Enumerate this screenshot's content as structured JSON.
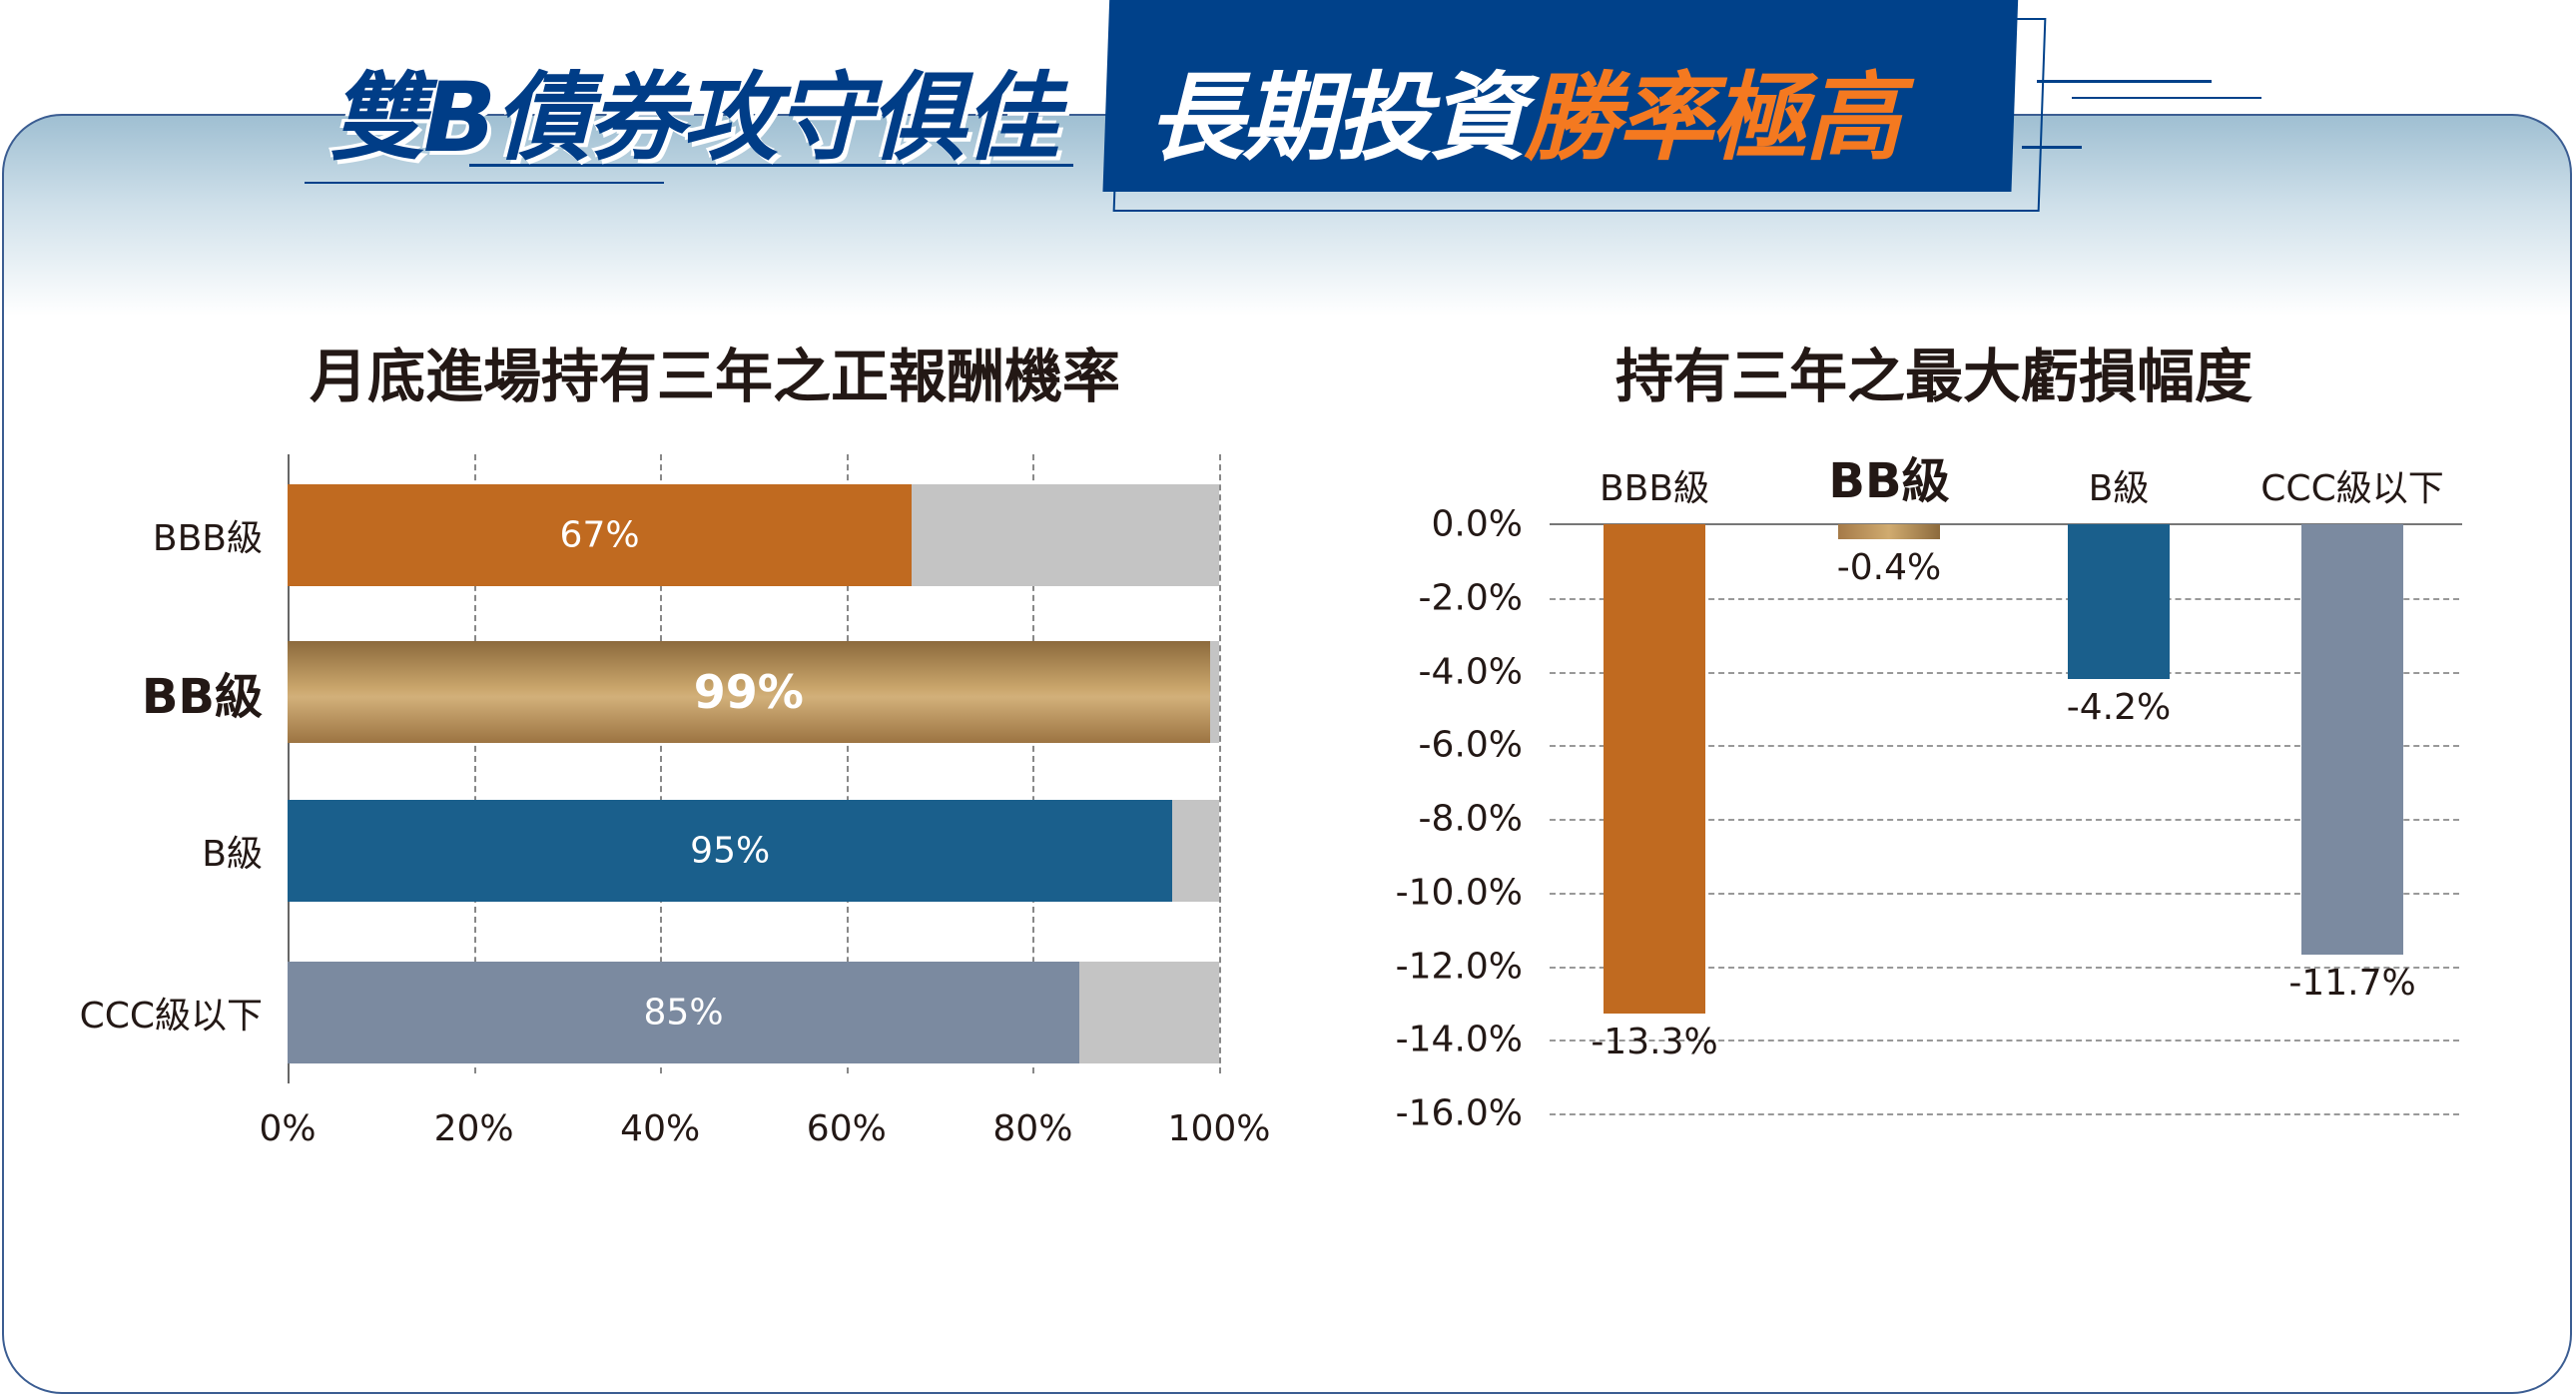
{
  "header": {
    "title_left": "雙B債券攻守俱佳",
    "title_right_main": "長期投資",
    "title_right_highlight": "勝率極高",
    "accent": "#f47920",
    "brand": "#00418a"
  },
  "chart_data": [
    {
      "type": "bar",
      "orientation": "horizontal",
      "title": "月底進場持有三年之正報酬機率",
      "categories": [
        "BBB級",
        "BB級",
        "B級",
        "CCC級以下"
      ],
      "values": [
        67,
        99,
        95,
        85
      ],
      "labels": [
        "67%",
        "99%",
        "95%",
        "85%"
      ],
      "xlim": [
        0,
        100
      ],
      "xticks": [
        "0%",
        "20%",
        "40%",
        "60%",
        "80%",
        "100%"
      ],
      "colors": [
        "#c06a20",
        "gold-gradient",
        "#1a5f8c",
        "#7b8aa0"
      ],
      "grid": "vertical-dashed"
    },
    {
      "type": "bar",
      "orientation": "vertical",
      "title": "持有三年之最大虧損幅度",
      "categories": [
        "BBB級",
        "BB級",
        "B級",
        "CCC級以下"
      ],
      "values": [
        -13.3,
        -0.4,
        -4.2,
        -11.7
      ],
      "labels": [
        "-13.3%",
        "-0.4%",
        "-4.2%",
        "-11.7%"
      ],
      "ylim": [
        -16,
        0
      ],
      "yticks": [
        "0.0%",
        "-2.0%",
        "-4.0%",
        "-6.0%",
        "-8.0%",
        "-10.0%",
        "-12.0%",
        "-14.0%",
        "-16.0%"
      ],
      "colors": [
        "#c06a20",
        "gold-gradient",
        "#1a5f8c",
        "#7b8aa0"
      ],
      "grid": "horizontal-dashed"
    }
  ]
}
